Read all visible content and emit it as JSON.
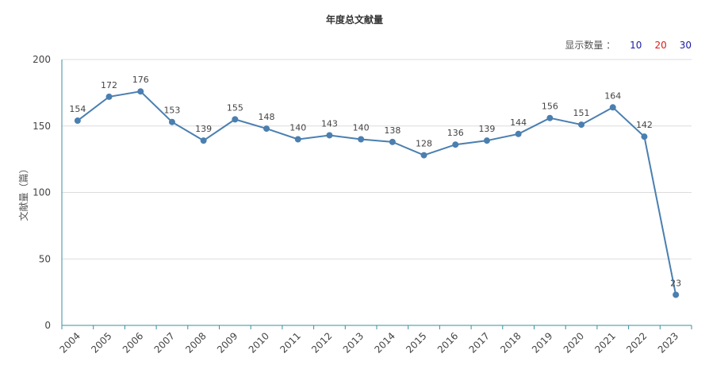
{
  "chart_data": {
    "type": "line",
    "title": "年度总文献量",
    "ylabel": "文献量（篇）",
    "xlabel": "",
    "categories": [
      "2004",
      "2005",
      "2006",
      "2007",
      "2008",
      "2009",
      "2010",
      "2011",
      "2012",
      "2013",
      "2014",
      "2015",
      "2016",
      "2017",
      "2018",
      "2019",
      "2020",
      "2021",
      "2022",
      "2023"
    ],
    "values": [
      154,
      172,
      176,
      153,
      139,
      155,
      148,
      140,
      143,
      140,
      138,
      128,
      136,
      139,
      144,
      156,
      151,
      164,
      142,
      23
    ],
    "ylim": [
      0,
      200
    ],
    "yticks": [
      "0",
      "50",
      "100",
      "150",
      "200"
    ],
    "grid": true,
    "line_color": "#4a7fb0"
  },
  "controls": {
    "display_label": "显示数量 ：",
    "options": [
      {
        "label": "10",
        "color": "#1a1aa6"
      },
      {
        "label": "20",
        "color": "#d81e1e"
      },
      {
        "label": "30",
        "color": "#1a1aa6"
      }
    ]
  }
}
